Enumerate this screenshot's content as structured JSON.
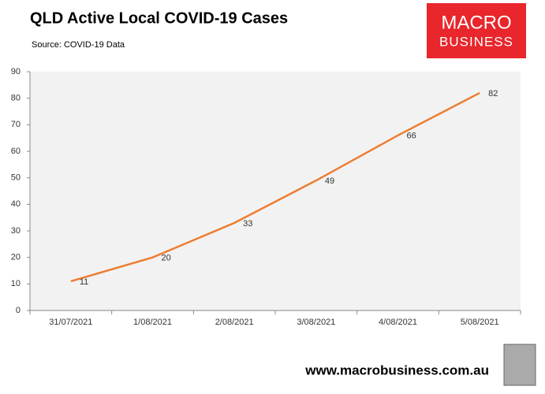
{
  "chart_data": {
    "type": "line",
    "title": "QLD Active Local COVID-19 Cases",
    "subtitle": "Source: COVID-19 Data",
    "categories": [
      "31/07/2021",
      "1/08/2021",
      "2/08/2021",
      "3/08/2021",
      "4/08/2021",
      "5/08/2021"
    ],
    "values": [
      11,
      20,
      33,
      49,
      66,
      82
    ],
    "color": "#ed7d31",
    "ylim": [
      0,
      90
    ],
    "yticks": [
      0,
      10,
      20,
      30,
      40,
      50,
      60,
      70,
      80,
      90
    ],
    "grid": false,
    "data_labels": true
  },
  "logo": {
    "line1": "MACRO",
    "line2": "BUSINESS"
  },
  "footer": "www.macrobusiness.com.au"
}
